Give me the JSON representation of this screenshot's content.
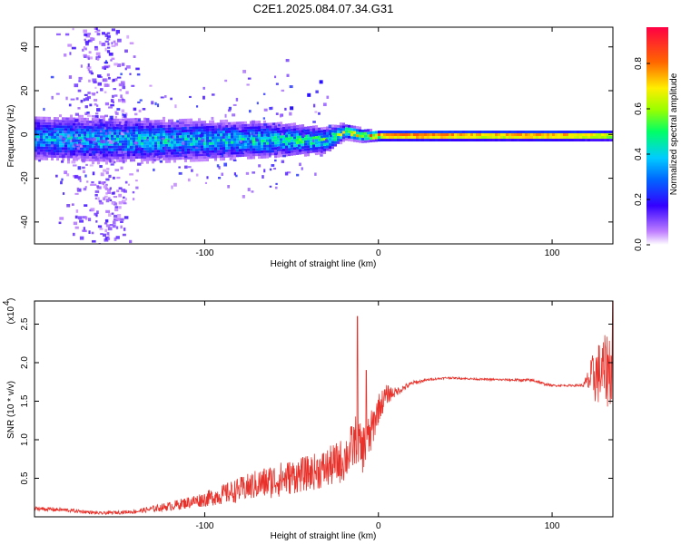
{
  "title": "C2E1.2025.084.07.34.G31",
  "colors": {
    "snr_line": "#e8312a",
    "frame": "#000000",
    "background": "#ffffff"
  },
  "chart_data": [
    {
      "type": "heatmap",
      "xlabel": "Height of straight line (km)",
      "ylabel": "Frequency (Hz)",
      "xlim": [
        -198,
        135
      ],
      "ylim": [
        -50,
        49
      ],
      "xticks": [
        -100,
        0,
        100
      ],
      "xtick_labels": [
        "-100",
        "0",
        "100"
      ],
      "yticks": [
        -40,
        -20,
        0,
        20,
        40
      ],
      "ytick_labels": [
        "-40",
        "-20",
        "0",
        "20",
        "40"
      ],
      "colorbar": {
        "label": "Normalized spectral amplitude",
        "range": [
          0,
          0.96
        ],
        "ticks": [
          0.0,
          0.2,
          0.4,
          0.6,
          0.8
        ],
        "tick_labels": [
          "0.0",
          "0.2",
          "0.4",
          "0.6",
          "0.8"
        ]
      },
      "ridge": {
        "description_points_x": [
          -198,
          -150,
          -100,
          -60,
          -30,
          -20,
          -10,
          0,
          20,
          60,
          100,
          135
        ],
        "center_freq": [
          -1,
          -2,
          -2,
          -2,
          -2,
          2,
          0,
          0,
          0,
          0,
          0,
          0
        ],
        "peak_amplitude": [
          0.4,
          0.45,
          0.45,
          0.5,
          0.55,
          0.7,
          0.8,
          0.85,
          0.95,
          0.85,
          0.9,
          0.75
        ],
        "half_width_hz": [
          9,
          9,
          8,
          7,
          5,
          3,
          2.5,
          2,
          2,
          2,
          2,
          2
        ]
      },
      "scatter_cloud": {
        "x_center": -160,
        "x_spread": 10,
        "freq_range": [
          -50,
          49
        ]
      },
      "doppler_trace": {
        "x": [
          -50,
          -40,
          -33
        ],
        "freq": [
          12,
          18,
          24
        ]
      }
    },
    {
      "type": "line",
      "xlabel": "Height of straight line (km)",
      "ylabel": "SNR (10 * v/v)",
      "y_multiplier_label": "(x10",
      "y_multiplier_exp": "4",
      "xlim": [
        -198,
        135
      ],
      "ylim": [
        0,
        28000
      ],
      "xticks": [
        -100,
        0,
        100
      ],
      "xtick_labels": [
        "-100",
        "0",
        "100"
      ],
      "yticks": [
        5000,
        10000,
        15000,
        20000,
        25000
      ],
      "ytick_labels": [
        "0.5",
        "1.0",
        "1.5",
        "2.0",
        "2.5"
      ],
      "series": [
        {
          "name": "SNR",
          "x": [
            -198,
            -180,
            -160,
            -140,
            -120,
            -100,
            -80,
            -70,
            -60,
            -50,
            -40,
            -30,
            -20,
            -15,
            -12,
            -10,
            -5,
            0,
            5,
            10,
            20,
            30,
            40,
            60,
            80,
            90,
            95,
            100,
            110,
            118,
            125,
            130,
            135
          ],
          "y": [
            1000,
            800,
            400,
            600,
            1200,
            2000,
            3000,
            3600,
            4000,
            4500,
            5000,
            5500,
            6500,
            8000,
            9500,
            7500,
            9500,
            13500,
            15500,
            16000,
            17300,
            17800,
            18000,
            17800,
            17700,
            17600,
            17200,
            17000,
            17000,
            17000,
            17300,
            17500,
            18000
          ],
          "noise": [
            400,
            400,
            300,
            400,
            900,
            1500,
            2500,
            3000,
            3500,
            3500,
            3500,
            4000,
            4500,
            5000,
            5000,
            5000,
            4500,
            3000,
            2000,
            900,
            400,
            200,
            200,
            200,
            250,
            400,
            300,
            200,
            200,
            300,
            6000,
            7000,
            9000
          ]
        }
      ],
      "spikes": [
        {
          "x": -12,
          "y": 26000
        },
        {
          "x": -7,
          "y": 19000
        },
        {
          "x": 135,
          "y": 28000
        }
      ]
    }
  ]
}
